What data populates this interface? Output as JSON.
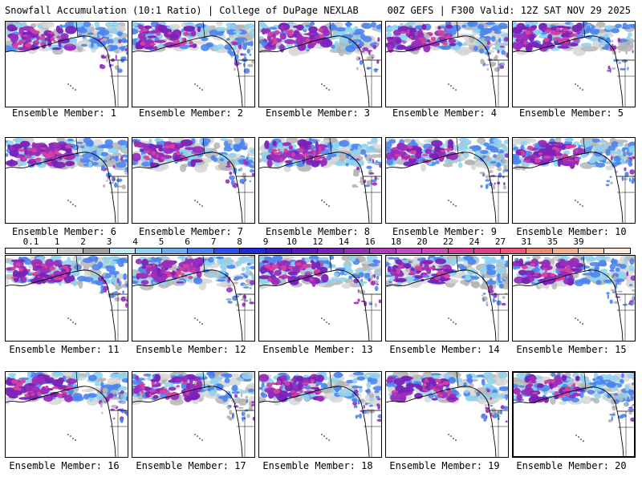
{
  "header": {
    "left": "Snowfall Accumulation (10:1 Ratio) | College of DuPage NEXLAB",
    "right": "00Z GEFS | F300 Valid: 12Z SAT NOV 29 2025"
  },
  "panels": [
    {
      "member": "Ensemble Member: 1",
      "intensity": 0.6,
      "highlight": false
    },
    {
      "member": "Ensemble Member: 2",
      "intensity": 0.55,
      "highlight": false
    },
    {
      "member": "Ensemble Member: 3",
      "intensity": 0.65,
      "highlight": false
    },
    {
      "member": "Ensemble Member: 4",
      "intensity": 0.6,
      "highlight": false
    },
    {
      "member": "Ensemble Member: 5",
      "intensity": 0.7,
      "highlight": false
    },
    {
      "member": "Ensemble Member: 6",
      "intensity": 0.75,
      "highlight": false
    },
    {
      "member": "Ensemble Member: 7",
      "intensity": 0.5,
      "highlight": false
    },
    {
      "member": "Ensemble Member: 8",
      "intensity": 0.6,
      "highlight": false
    },
    {
      "member": "Ensemble Member: 9",
      "intensity": 0.55,
      "highlight": false
    },
    {
      "member": "Ensemble Member: 10",
      "intensity": 0.65,
      "highlight": false
    },
    {
      "member": "Ensemble Member: 11",
      "intensity": 0.7,
      "highlight": false
    },
    {
      "member": "Ensemble Member: 12",
      "intensity": 0.6,
      "highlight": false
    },
    {
      "member": "Ensemble Member: 13",
      "intensity": 0.65,
      "highlight": false
    },
    {
      "member": "Ensemble Member: 14",
      "intensity": 0.55,
      "highlight": false
    },
    {
      "member": "Ensemble Member: 15",
      "intensity": 0.7,
      "highlight": false
    },
    {
      "member": "Ensemble Member: 16",
      "intensity": 0.65,
      "highlight": false
    },
    {
      "member": "Ensemble Member: 17",
      "intensity": 0.6,
      "highlight": false
    },
    {
      "member": "Ensemble Member: 18",
      "intensity": 0.6,
      "highlight": false
    },
    {
      "member": "Ensemble Member: 19",
      "intensity": 0.55,
      "highlight": false
    },
    {
      "member": "Ensemble Member: 20",
      "intensity": 0.5,
      "highlight": true
    }
  ],
  "colorbar": {
    "labels": [
      "0.1",
      "1",
      "2",
      "3",
      "4",
      "5",
      "6",
      "7",
      "8",
      "9",
      "10",
      "12",
      "14",
      "16",
      "18",
      "20",
      "22",
      "24",
      "27",
      "31",
      "35",
      "39"
    ],
    "colors": [
      "#ffffff",
      "#e6e6e6",
      "#c8c8c8",
      "#a0a0a0",
      "#bfeaf5",
      "#8fd3f0",
      "#6cb0f0",
      "#4a84ef",
      "#2e4ff0",
      "#1e2ad8",
      "#3a1ab0",
      "#5a1ab8",
      "#7a22b8",
      "#982cbc",
      "#b038c0",
      "#c848c8",
      "#d04ab8",
      "#d8409e",
      "#e0408a",
      "#e85a78",
      "#f08a70",
      "#f4b08c",
      "#f8d4b4",
      "#fce8d8"
    ]
  },
  "colors": {
    "background": "#ffffff",
    "border": "#000000",
    "land": "#ffffff",
    "gray_low": "#c8c8c8",
    "blue_mid": "#4a84ef",
    "purple_high": "#9a2cbc",
    "magenta_peak": "#d8409e"
  }
}
